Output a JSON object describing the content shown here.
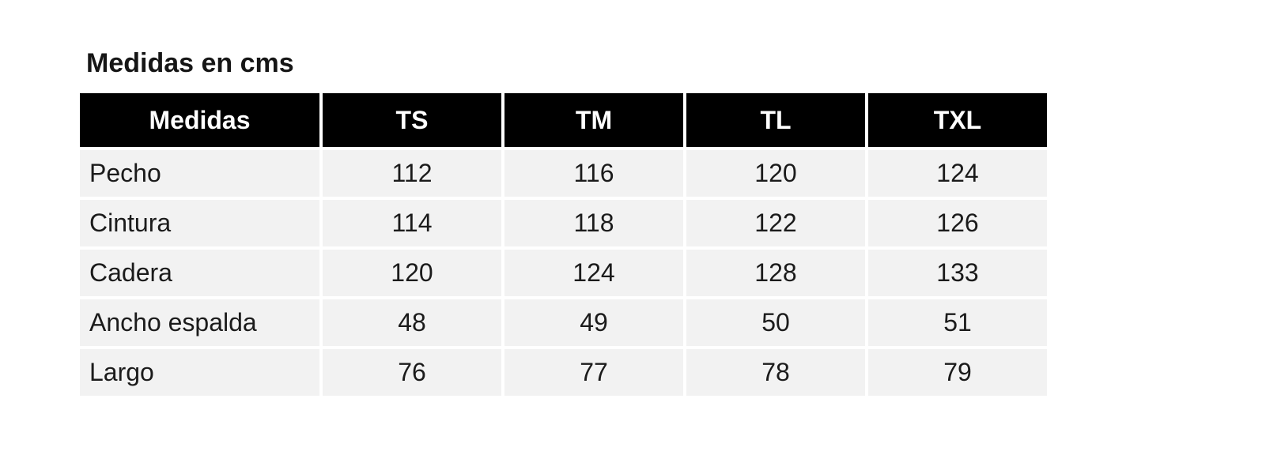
{
  "chart_data": {
    "type": "table",
    "title": "Medidas en cms",
    "columns": [
      "Medidas",
      "TS",
      "TM",
      "TL",
      "TXL"
    ],
    "rows": [
      {
        "label": "Pecho",
        "values": [
          112,
          116,
          120,
          124
        ]
      },
      {
        "label": "Cintura",
        "values": [
          114,
          118,
          122,
          126
        ]
      },
      {
        "label": "Cadera",
        "values": [
          120,
          124,
          128,
          133
        ]
      },
      {
        "label": "Ancho espalda",
        "values": [
          48,
          49,
          50,
          51
        ]
      },
      {
        "label": "Largo",
        "values": [
          76,
          77,
          78,
          79
        ]
      }
    ]
  },
  "colors": {
    "page_bg": "#ffffff",
    "header_bg": "#000000",
    "header_text": "#ffffff",
    "cell_bg": "#f2f2f2",
    "body_text": "#1b1b1b",
    "title_text": "#161616"
  }
}
